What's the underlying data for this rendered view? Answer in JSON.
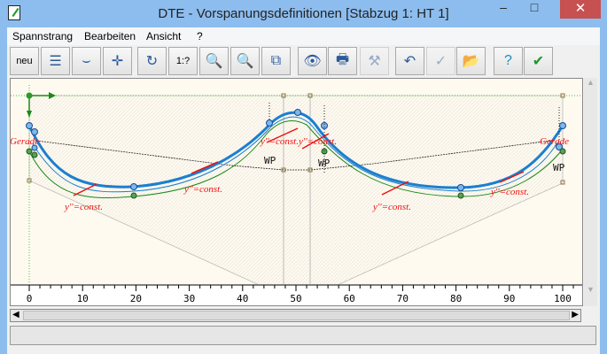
{
  "window": {
    "title": "DTE - Vorspanungsdefinitionen  [Stabzug 1: HT 1]",
    "minimize": "–",
    "maximize": "□",
    "close": "✕"
  },
  "menu": [
    "Spannstrang",
    "Bearbeiten",
    "Ansicht",
    "?"
  ],
  "toolbar": [
    {
      "icon": "new-icon",
      "label": "neu"
    },
    {
      "icon": "layers-icon"
    },
    {
      "icon": "curve-down-icon"
    },
    {
      "icon": "axis-curve-icon"
    },
    {
      "icon": "rotate-icon"
    },
    {
      "icon": "scale-ratio-icon",
      "label": "1:?"
    },
    {
      "icon": "zoom-in-icon"
    },
    {
      "icon": "zoom-out-icon"
    },
    {
      "icon": "zoom-window-icon"
    },
    {
      "icon": "eye-icon"
    },
    {
      "icon": "print-icon"
    },
    {
      "icon": "tool-disabled-icon",
      "disabled": true
    },
    {
      "icon": "undo-icon"
    },
    {
      "icon": "check-search-icon",
      "disabled": true
    },
    {
      "icon": "open-folder-icon"
    },
    {
      "icon": "help-icon"
    },
    {
      "icon": "ok-check-icon"
    }
  ],
  "drawing": {
    "labels": {
      "gerade_left": "Gerade",
      "gerade_right": "Gerade",
      "wp1": "WP",
      "wp2": "WP",
      "wp3": "WP",
      "c1": "y''=const.",
      "c2": "y''=const.",
      "c3": "y''=const.y''=const.",
      "c4": "y''=const.",
      "c5": "y''=const."
    },
    "ruler_ticks": [
      "0",
      "10",
      "20",
      "30",
      "40",
      "50",
      "60",
      "70",
      "80",
      "90",
      "100"
    ],
    "colors": {
      "tendon": "#1a7fd0",
      "secondary": "#1a8a1a",
      "annotation": "#ee1111",
      "background": "#fffaf0"
    }
  },
  "status": ""
}
